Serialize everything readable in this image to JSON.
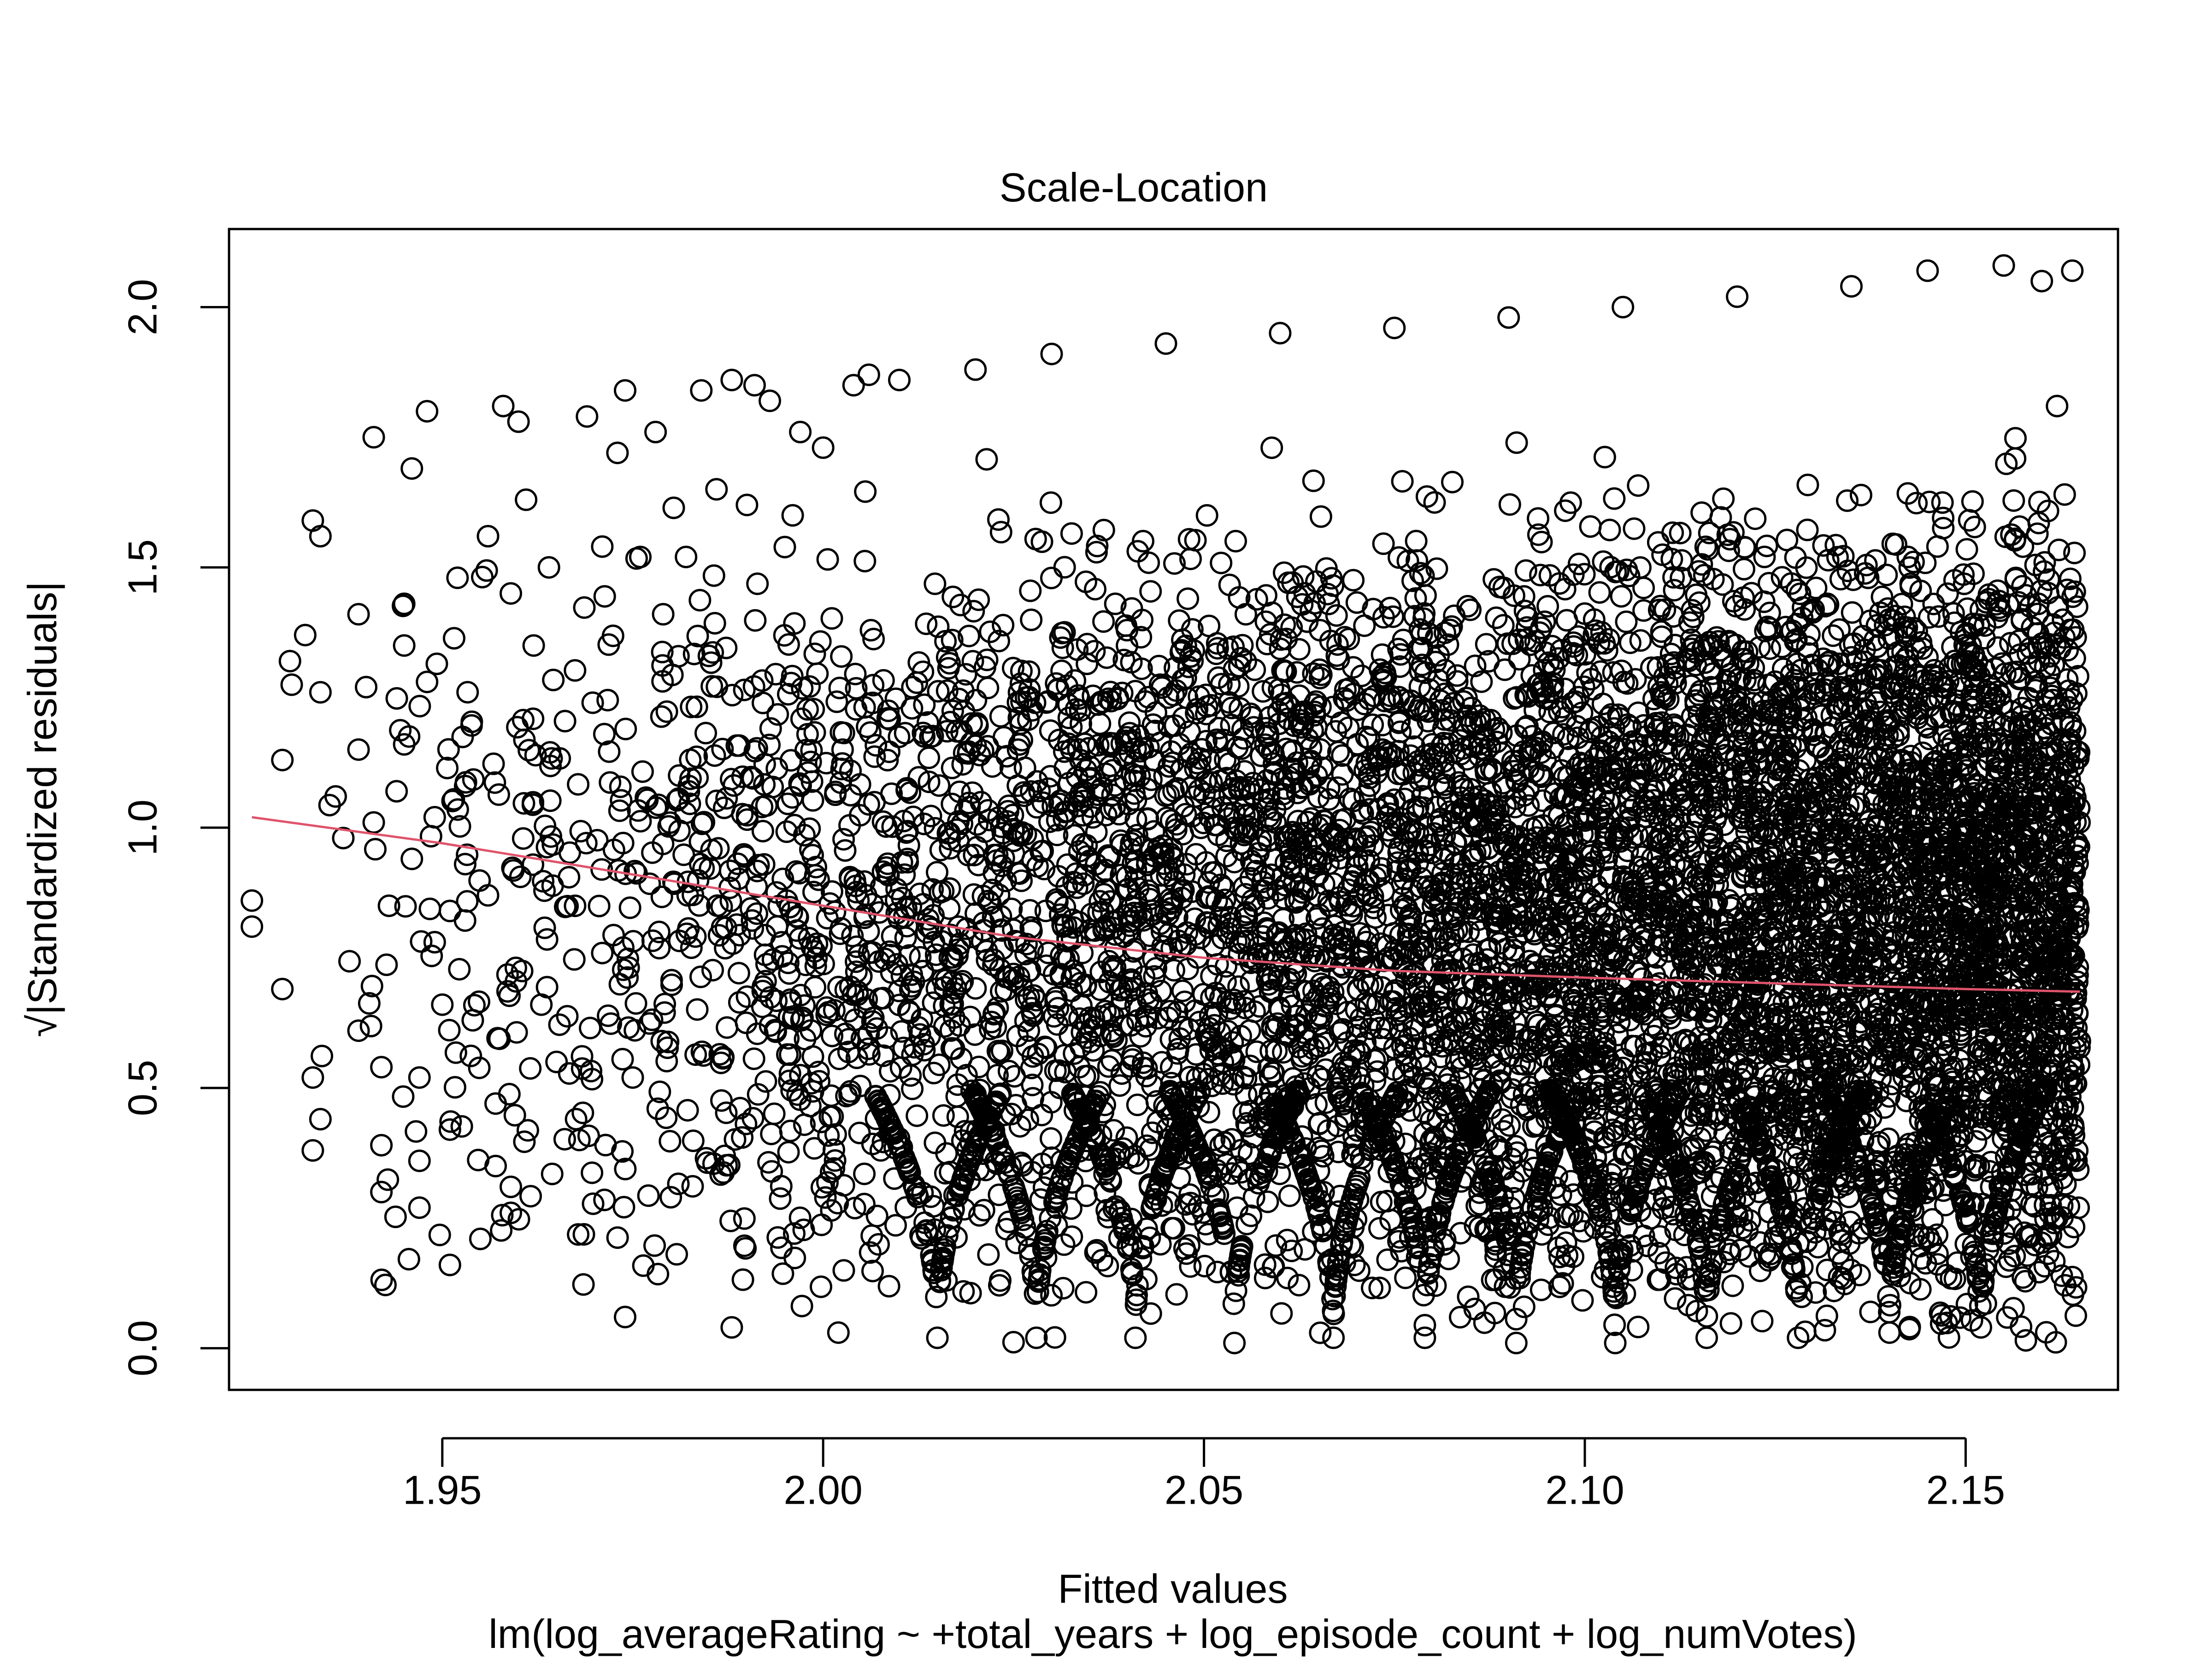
{
  "chart_data": {
    "type": "scatter",
    "title": "Scale-Location",
    "xlabel": "Fitted values",
    "ylabel": "√|Standardized residuals|",
    "subtitle": "lm(log_averageRating ~ +total_years + log_episode_count + log_numVotes)",
    "xlim": [
      1.922,
      2.17
    ],
    "ylim": [
      -0.08,
      2.15
    ],
    "xticks": [
      1.95,
      2.0,
      2.05,
      2.1,
      2.15
    ],
    "xtick_labels": [
      "1.95",
      "2.00",
      "2.05",
      "2.10",
      "2.15"
    ],
    "yticks": [
      0.0,
      0.5,
      1.0,
      1.5,
      2.0
    ],
    "ytick_labels": [
      "0.0",
      "0.5",
      "1.0",
      "1.5",
      "2.0"
    ],
    "grid": false,
    "legend": "none",
    "marker": "open-circle",
    "point_color": "#000000",
    "fitted_values_range": [
      1.925,
      2.165
    ],
    "residual_range": [
      0.0,
      2.08
    ],
    "discrete_fitted_levels": [
      2.015,
      2.028,
      2.041,
      2.054,
      2.067,
      2.079,
      2.091,
      2.104,
      2.116,
      2.128,
      2.14,
      2.152
    ],
    "sample_points": [
      [
        1.925,
        0.86
      ],
      [
        1.925,
        0.81
      ],
      [
        1.929,
        0.69
      ],
      [
        1.929,
        1.13
      ],
      [
        1.93,
        1.32
      ],
      [
        1.932,
        1.37
      ],
      [
        1.933,
        1.59
      ],
      [
        1.933,
        0.52
      ],
      [
        1.933,
        0.38
      ],
      [
        1.934,
        1.56
      ],
      [
        1.934,
        1.26
      ],
      [
        1.934,
        0.44
      ],
      [
        1.936,
        1.06
      ],
      [
        1.937,
        0.98
      ],
      [
        1.939,
        1.41
      ],
      [
        1.939,
        1.15
      ],
      [
        1.939,
        0.61
      ],
      [
        1.94,
        1.27
      ],
      [
        1.941,
        1.75
      ],
      [
        1.941,
        1.01
      ],
      [
        1.942,
        0.54
      ],
      [
        1.942,
        0.3
      ],
      [
        1.942,
        0.39
      ],
      [
        1.943,
        0.85
      ],
      [
        1.944,
        1.07
      ],
      [
        1.945,
        1.43
      ],
      [
        1.945,
        1.35
      ],
      [
        1.945,
        1.16
      ],
      [
        1.946,
        1.69
      ],
      [
        1.946,
        0.94
      ],
      [
        1.947,
        0.52
      ],
      [
        1.947,
        0.36
      ],
      [
        1.947,
        0.27
      ],
      [
        1.948,
        1.8
      ],
      [
        1.948,
        1.28
      ],
      [
        1.949,
        1.02
      ],
      [
        1.949,
        0.78
      ],
      [
        1.95,
        0.66
      ],
      [
        1.951,
        0.84
      ],
      [
        1.951,
        0.42
      ],
      [
        1.951,
        0.16
      ],
      [
        1.952,
        1.48
      ],
      [
        1.953,
        1.08
      ],
      [
        1.953,
        0.93
      ],
      [
        1.954,
        0.63
      ],
      [
        1.955,
        0.21
      ],
      [
        1.956,
        1.56
      ],
      [
        1.956,
        0.87
      ],
      [
        1.957,
        0.47
      ],
      [
        1.957,
        0.35
      ],
      [
        1.958,
        1.81
      ],
      [
        1.959,
        1.45
      ],
      [
        1.959,
        0.31
      ],
      [
        1.959,
        0.26
      ],
      [
        1.96,
        1.78
      ],
      [
        1.961,
        1.63
      ],
      [
        1.962,
        1.35
      ],
      [
        1.963,
        0.66
      ],
      [
        1.964,
        1.5
      ],
      [
        1.965,
        0.55
      ],
      [
        1.968,
        0.4
      ],
      [
        1.969,
        1.79
      ],
      [
        1.971,
        1.54
      ],
      [
        1.973,
        1.72
      ],
      [
        1.974,
        1.84
      ],
      [
        1.974,
        0.06
      ],
      [
        1.975,
        0.52
      ],
      [
        1.976,
        1.52
      ],
      [
        1.978,
        1.76
      ],
      [
        1.979,
        1.41
      ],
      [
        1.98,
        0.29
      ],
      [
        1.982,
        1.52
      ],
      [
        1.984,
        1.84
      ],
      [
        1.986,
        1.65
      ],
      [
        1.988,
        1.86
      ],
      [
        1.988,
        0.04
      ],
      [
        1.99,
        1.62
      ],
      [
        1.991,
        1.85
      ],
      [
        1.993,
        1.82
      ],
      [
        1.996,
        1.6
      ],
      [
        1.997,
        1.76
      ],
      [
        2.0,
        1.73
      ],
      [
        2.002,
        0.03
      ],
      [
        2.004,
        1.85
      ],
      [
        2.006,
        1.87
      ],
      [
        2.01,
        1.86
      ],
      [
        2.015,
        0.02
      ],
      [
        2.02,
        1.88
      ],
      [
        2.028,
        0.02
      ],
      [
        2.03,
        1.91
      ],
      [
        2.041,
        0.02
      ],
      [
        2.045,
        1.93
      ],
      [
        2.054,
        0.01
      ],
      [
        2.06,
        1.95
      ],
      [
        2.067,
        0.02
      ],
      [
        2.075,
        1.96
      ],
      [
        2.079,
        0.02
      ],
      [
        2.09,
        1.98
      ],
      [
        2.091,
        0.01
      ],
      [
        2.104,
        0.01
      ],
      [
        2.105,
        2.0
      ],
      [
        2.116,
        0.02
      ],
      [
        2.12,
        2.02
      ],
      [
        2.128,
        0.02
      ],
      [
        2.135,
        2.04
      ],
      [
        2.14,
        0.03
      ],
      [
        2.145,
        2.07
      ],
      [
        2.152,
        0.04
      ],
      [
        2.155,
        2.08
      ],
      [
        2.16,
        2.05
      ],
      [
        2.162,
        1.81
      ],
      [
        2.163,
        1.64
      ],
      [
        2.163,
        1.03
      ],
      [
        2.163,
        0.81
      ],
      [
        2.164,
        0.54
      ],
      [
        2.164,
        2.07
      ],
      [
        2.163,
        0.4
      ],
      [
        2.162,
        0.25
      ]
    ],
    "smoother": {
      "color": "#DF536B",
      "x": [
        1.925,
        1.95,
        1.975,
        2.0,
        2.025,
        2.05,
        2.075,
        2.1,
        2.125,
        2.15,
        2.165
      ],
      "y": [
        1.02,
        0.97,
        0.91,
        0.85,
        0.79,
        0.75,
        0.725,
        0.712,
        0.701,
        0.69,
        0.685
      ]
    }
  }
}
